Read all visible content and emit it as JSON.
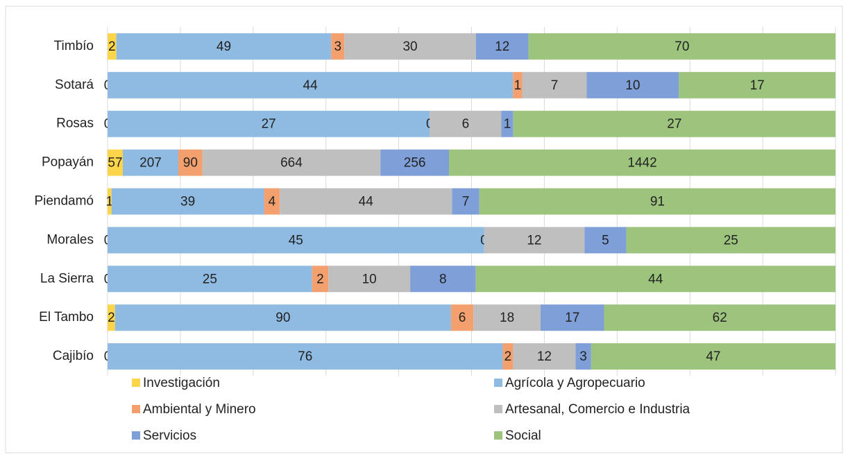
{
  "chart_data": {
    "type": "stacked100_barh",
    "categories": [
      "Timbío",
      "Sotará",
      "Rosas",
      "Popayán",
      "Piendamó",
      "Morales",
      "La Sierra",
      "El Tambo",
      "Cajibío"
    ],
    "series": [
      {
        "name": "Investigación",
        "color": "#fdd54c",
        "values": [
          2,
          0,
          0,
          57,
          1,
          0,
          0,
          2,
          0
        ]
      },
      {
        "name": "Agrícola y Agropecuario",
        "color": "#8fbae2",
        "values": [
          49,
          44,
          27,
          207,
          39,
          45,
          25,
          90,
          76
        ]
      },
      {
        "name": "Ambiental y Minero",
        "color": "#f4a06e",
        "values": [
          3,
          1,
          0,
          90,
          4,
          0,
          2,
          6,
          2
        ]
      },
      {
        "name": "Artesanal, Comercio e Industria",
        "color": "#bfbfbf",
        "values": [
          30,
          7,
          6,
          664,
          44,
          12,
          10,
          18,
          12
        ]
      },
      {
        "name": "Servicios",
        "color": "#7f9fd8",
        "values": [
          12,
          10,
          1,
          256,
          7,
          5,
          8,
          17,
          3
        ]
      },
      {
        "name": "Social",
        "color": "#9cc47c",
        "values": [
          70,
          17,
          27,
          1442,
          91,
          25,
          44,
          62,
          47
        ]
      }
    ],
    "xlim": [
      0,
      100
    ],
    "xticks": [
      0,
      10,
      20,
      30,
      40,
      50,
      60,
      70,
      80,
      90,
      100
    ],
    "grid": true
  }
}
